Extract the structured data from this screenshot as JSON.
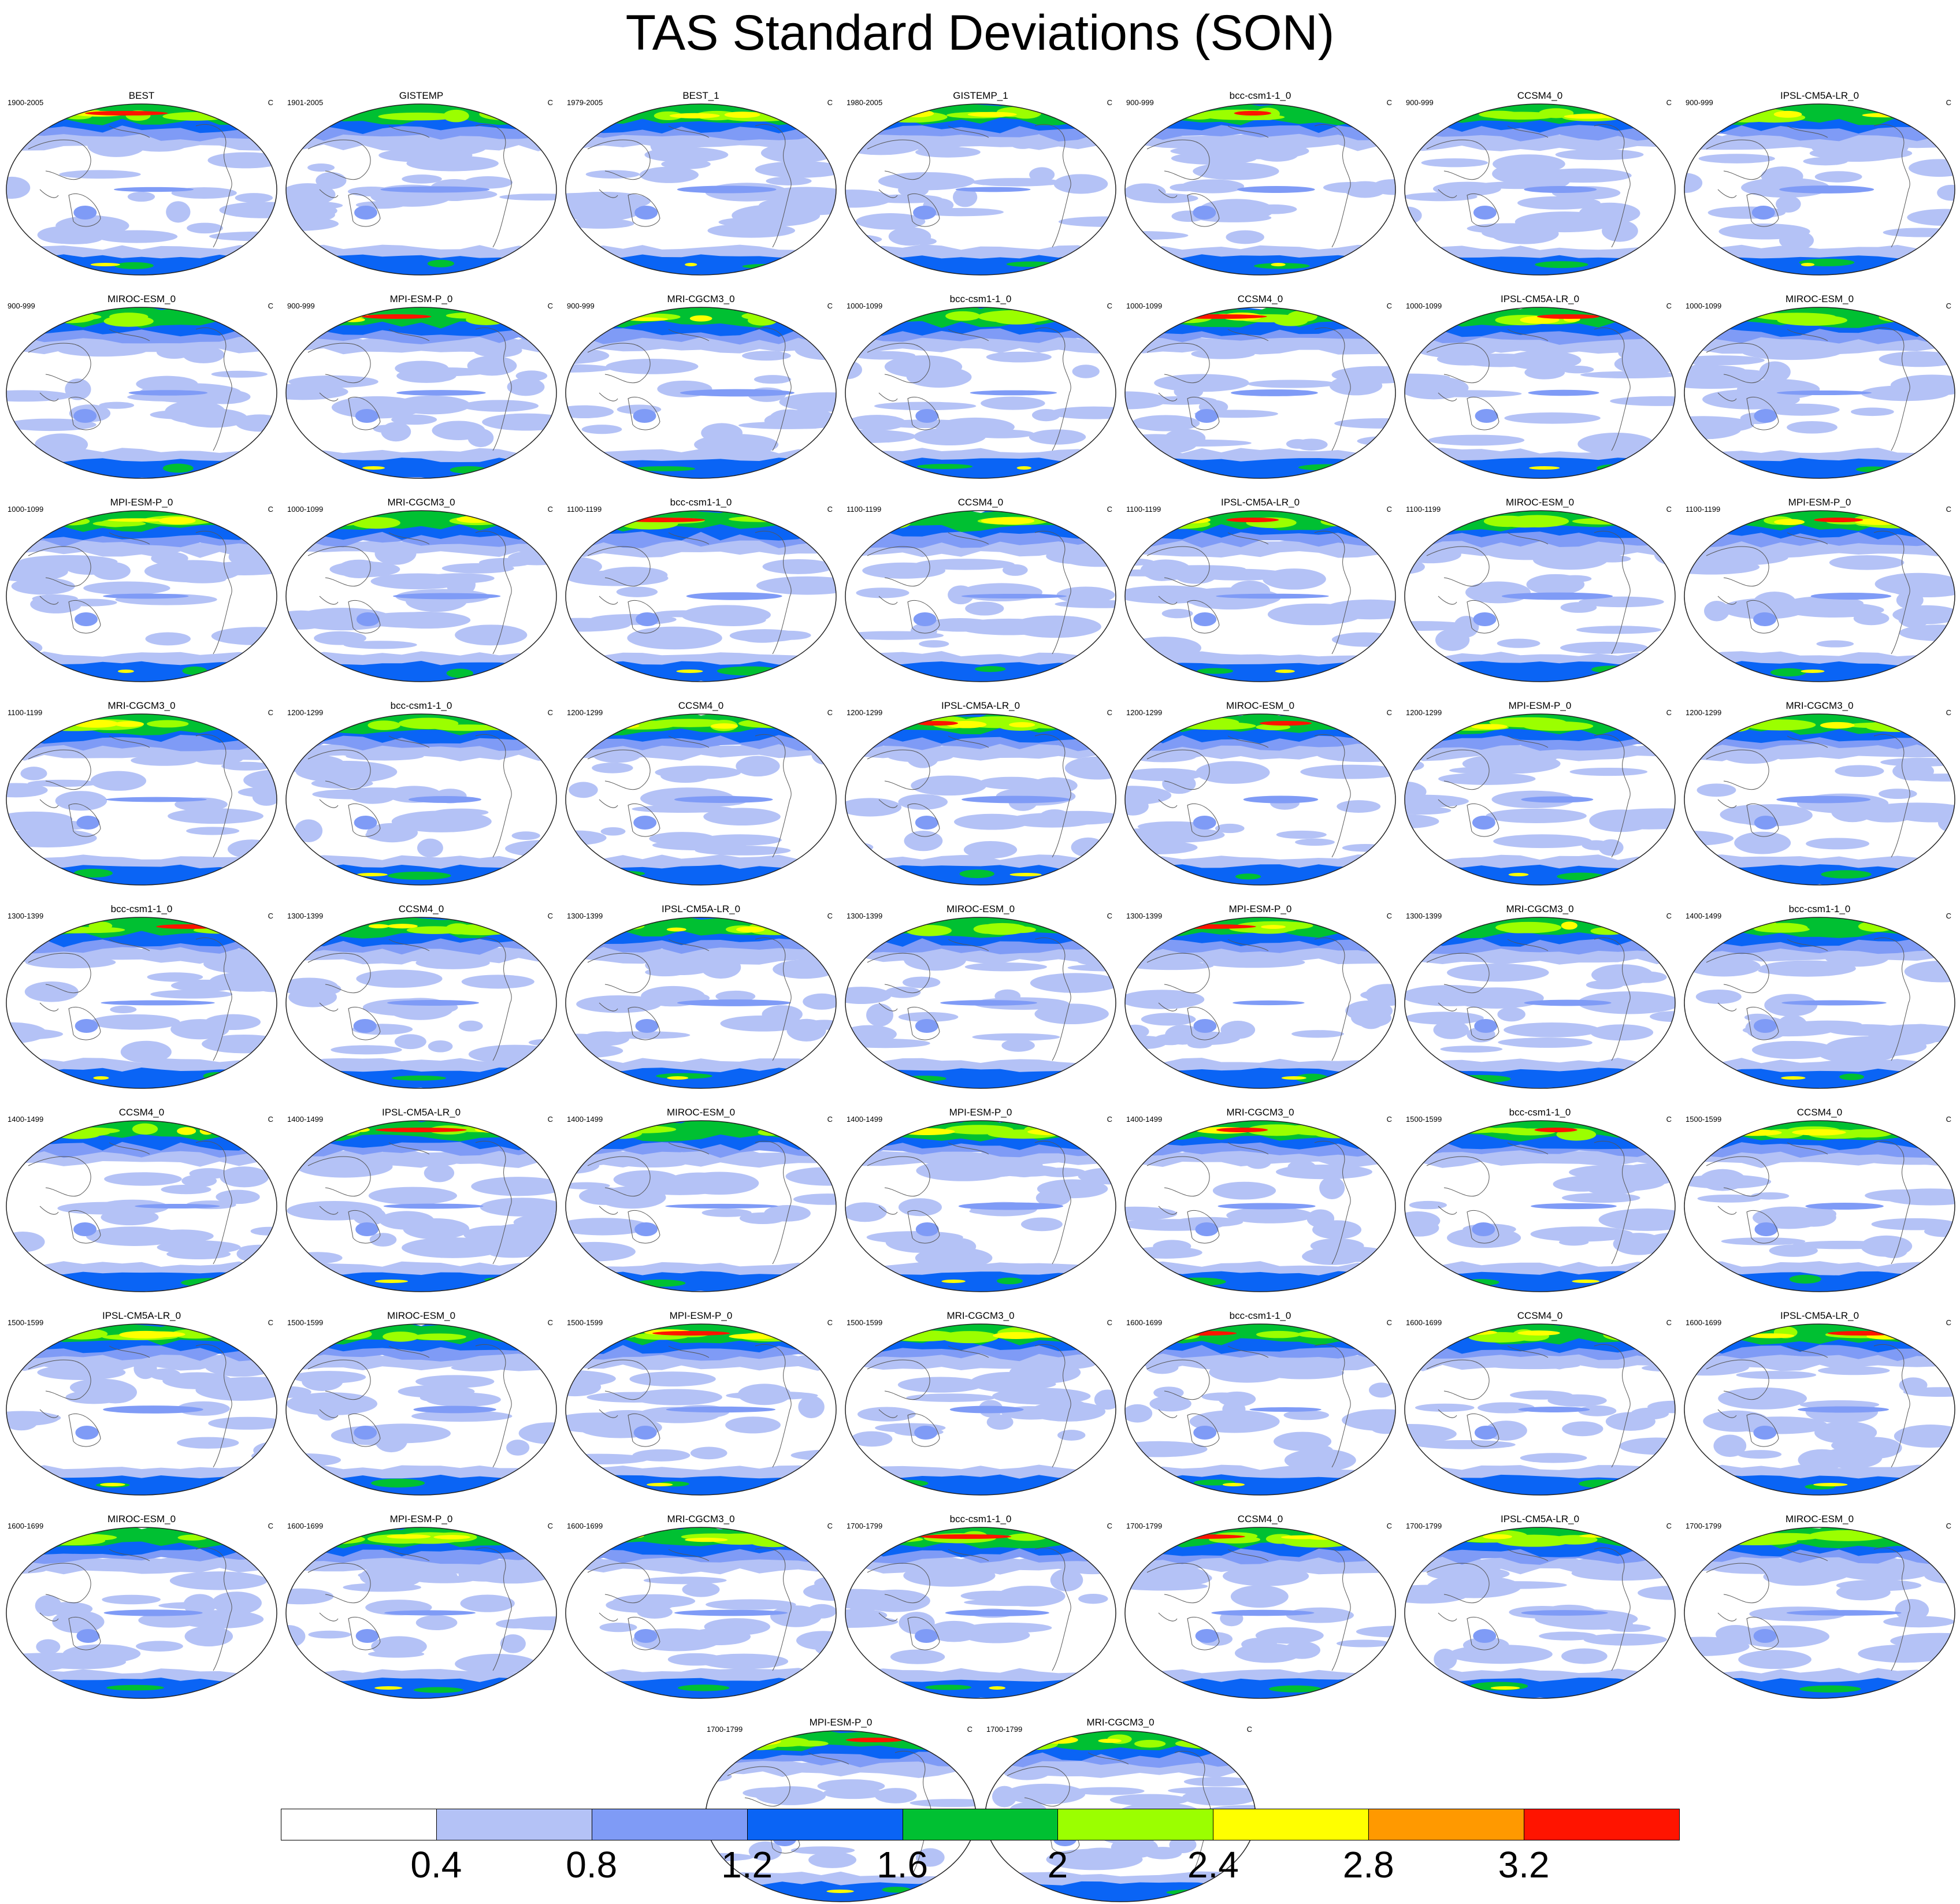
{
  "title": "TAS Standard Deviations (SON)",
  "panels": [
    {
      "title": "BEST",
      "range": "1900-2005",
      "unit": "C"
    },
    {
      "title": "GISTEMP",
      "range": "1901-2005",
      "unit": "C"
    },
    {
      "title": "BEST_1",
      "range": "1979-2005",
      "unit": "C"
    },
    {
      "title": "GISTEMP_1",
      "range": "1980-2005",
      "unit": "C"
    },
    {
      "title": "bcc-csm1-1_0",
      "range": "900-999",
      "unit": "C"
    },
    {
      "title": "CCSM4_0",
      "range": "900-999",
      "unit": "C"
    },
    {
      "title": "IPSL-CM5A-LR_0",
      "range": "900-999",
      "unit": "C"
    },
    {
      "title": "MIROC-ESM_0",
      "range": "900-999",
      "unit": "C"
    },
    {
      "title": "MPI-ESM-P_0",
      "range": "900-999",
      "unit": "C"
    },
    {
      "title": "MRI-CGCM3_0",
      "range": "900-999",
      "unit": "C"
    },
    {
      "title": "bcc-csm1-1_0",
      "range": "1000-1099",
      "unit": "C"
    },
    {
      "title": "CCSM4_0",
      "range": "1000-1099",
      "unit": "C"
    },
    {
      "title": "IPSL-CM5A-LR_0",
      "range": "1000-1099",
      "unit": "C"
    },
    {
      "title": "MIROC-ESM_0",
      "range": "1000-1099",
      "unit": "C"
    },
    {
      "title": "MPI-ESM-P_0",
      "range": "1000-1099",
      "unit": "C"
    },
    {
      "title": "MRI-CGCM3_0",
      "range": "1000-1099",
      "unit": "C"
    },
    {
      "title": "bcc-csm1-1_0",
      "range": "1100-1199",
      "unit": "C"
    },
    {
      "title": "CCSM4_0",
      "range": "1100-1199",
      "unit": "C"
    },
    {
      "title": "IPSL-CM5A-LR_0",
      "range": "1100-1199",
      "unit": "C"
    },
    {
      "title": "MIROC-ESM_0",
      "range": "1100-1199",
      "unit": "C"
    },
    {
      "title": "MPI-ESM-P_0",
      "range": "1100-1199",
      "unit": "C"
    },
    {
      "title": "MRI-CGCM3_0",
      "range": "1100-1199",
      "unit": "C"
    },
    {
      "title": "bcc-csm1-1_0",
      "range": "1200-1299",
      "unit": "C"
    },
    {
      "title": "CCSM4_0",
      "range": "1200-1299",
      "unit": "C"
    },
    {
      "title": "IPSL-CM5A-LR_0",
      "range": "1200-1299",
      "unit": "C"
    },
    {
      "title": "MIROC-ESM_0",
      "range": "1200-1299",
      "unit": "C"
    },
    {
      "title": "MPI-ESM-P_0",
      "range": "1200-1299",
      "unit": "C"
    },
    {
      "title": "MRI-CGCM3_0",
      "range": "1200-1299",
      "unit": "C"
    },
    {
      "title": "bcc-csm1-1_0",
      "range": "1300-1399",
      "unit": "C"
    },
    {
      "title": "CCSM4_0",
      "range": "1300-1399",
      "unit": "C"
    },
    {
      "title": "IPSL-CM5A-LR_0",
      "range": "1300-1399",
      "unit": "C"
    },
    {
      "title": "MIROC-ESM_0",
      "range": "1300-1399",
      "unit": "C"
    },
    {
      "title": "MPI-ESM-P_0",
      "range": "1300-1399",
      "unit": "C"
    },
    {
      "title": "MRI-CGCM3_0",
      "range": "1300-1399",
      "unit": "C"
    },
    {
      "title": "bcc-csm1-1_0",
      "range": "1400-1499",
      "unit": "C"
    },
    {
      "title": "CCSM4_0",
      "range": "1400-1499",
      "unit": "C"
    },
    {
      "title": "IPSL-CM5A-LR_0",
      "range": "1400-1499",
      "unit": "C"
    },
    {
      "title": "MIROC-ESM_0",
      "range": "1400-1499",
      "unit": "C"
    },
    {
      "title": "MPI-ESM-P_0",
      "range": "1400-1499",
      "unit": "C"
    },
    {
      "title": "MRI-CGCM3_0",
      "range": "1400-1499",
      "unit": "C"
    },
    {
      "title": "bcc-csm1-1_0",
      "range": "1500-1599",
      "unit": "C"
    },
    {
      "title": "CCSM4_0",
      "range": "1500-1599",
      "unit": "C"
    },
    {
      "title": "IPSL-CM5A-LR_0",
      "range": "1500-1599",
      "unit": "C"
    },
    {
      "title": "MIROC-ESM_0",
      "range": "1500-1599",
      "unit": "C"
    },
    {
      "title": "MPI-ESM-P_0",
      "range": "1500-1599",
      "unit": "C"
    },
    {
      "title": "MRI-CGCM3_0",
      "range": "1500-1599",
      "unit": "C"
    },
    {
      "title": "bcc-csm1-1_0",
      "range": "1600-1699",
      "unit": "C"
    },
    {
      "title": "CCSM4_0",
      "range": "1600-1699",
      "unit": "C"
    },
    {
      "title": "IPSL-CM5A-LR_0",
      "range": "1600-1699",
      "unit": "C"
    },
    {
      "title": "MIROC-ESM_0",
      "range": "1600-1699",
      "unit": "C"
    },
    {
      "title": "MPI-ESM-P_0",
      "range": "1600-1699",
      "unit": "C"
    },
    {
      "title": "MRI-CGCM3_0",
      "range": "1600-1699",
      "unit": "C"
    },
    {
      "title": "bcc-csm1-1_0",
      "range": "1700-1799",
      "unit": "C"
    },
    {
      "title": "CCSM4_0",
      "range": "1700-1799",
      "unit": "C"
    },
    {
      "title": "IPSL-CM5A-LR_0",
      "range": "1700-1799",
      "unit": "C"
    },
    {
      "title": "MIROC-ESM_0",
      "range": "1700-1799",
      "unit": "C"
    },
    {
      "title": "MPI-ESM-P_0",
      "range": "1700-1799",
      "unit": "C"
    },
    {
      "title": "MRI-CGCM3_0",
      "range": "1700-1799",
      "unit": "C"
    }
  ],
  "colorbar": {
    "colors": [
      "#ffffff",
      "#b4c2f6",
      "#7f9bf6",
      "#0a64f5",
      "#00c032",
      "#9bff00",
      "#ffff00",
      "#ff9900",
      "#ff1400"
    ],
    "labels": [
      "0.4",
      "0.8",
      "1.2",
      "1.6",
      "2",
      "2.4",
      "2.8",
      "3.2"
    ]
  }
}
